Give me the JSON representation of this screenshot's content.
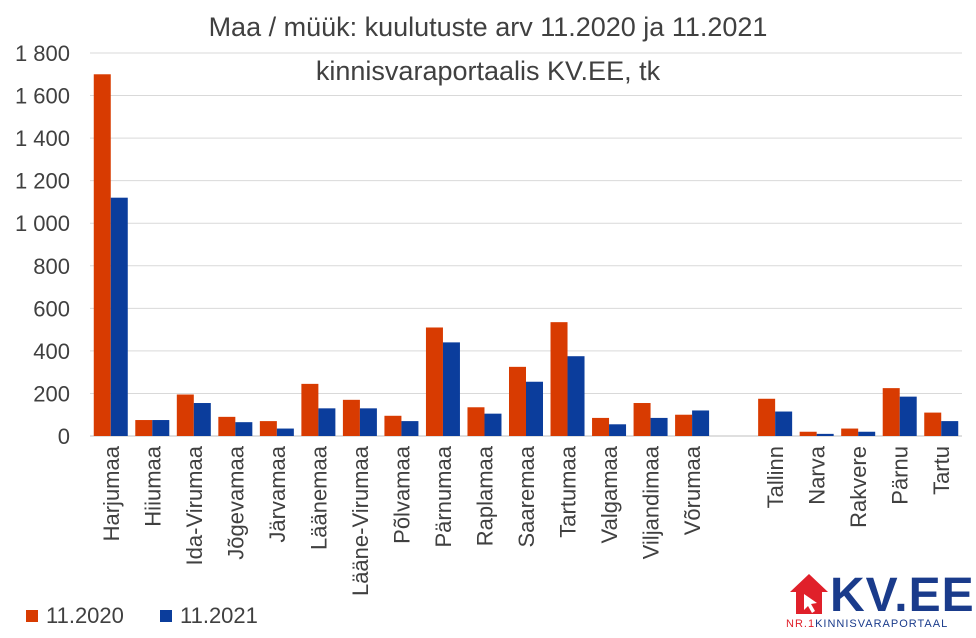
{
  "chart_data": {
    "type": "bar",
    "title_line1": "Maa / müük: kuulutuste arv 11.2020 ja 11.2021",
    "title_line2": "kinnisvaraportaalis KV.EE, tk",
    "categories": [
      "Harjumaa",
      "Hiiumaa",
      "Ida-Virumaa",
      "Jõgevamaa",
      "Järvamaa",
      "Läänemaa",
      "Lääne-Virumaa",
      "Põlvamaa",
      "Pärnumaa",
      "Raplamaa",
      "Saaremaa",
      "Tartumaa",
      "Valgamaa",
      "Viljandimaa",
      "Võrumaa",
      "",
      "Tallinn",
      "Narva",
      "Rakvere",
      "Pärnu",
      "Tartu"
    ],
    "series": [
      {
        "name": "11.2020",
        "color": "#d83b01",
        "values": [
          1700,
          75,
          195,
          90,
          70,
          245,
          170,
          95,
          510,
          135,
          325,
          535,
          85,
          155,
          100,
          null,
          175,
          20,
          35,
          225,
          110
        ]
      },
      {
        "name": "11.2021",
        "color": "#0b3d9c",
        "values": [
          1120,
          75,
          155,
          65,
          35,
          130,
          130,
          70,
          440,
          105,
          255,
          375,
          55,
          85,
          120,
          null,
          115,
          10,
          20,
          185,
          70
        ]
      }
    ],
    "ylim": [
      0,
      1800
    ],
    "yticks": [
      0,
      200,
      400,
      600,
      800,
      1000,
      1200,
      1400,
      1600,
      1800
    ],
    "ytick_labels": [
      "0",
      "200",
      "400",
      "600",
      "800",
      "1 000",
      "1 200",
      "1 400",
      "1 600",
      "1 800"
    ],
    "grid": true,
    "legend_position": "bottom-left"
  },
  "logo": {
    "text": "KV.EE",
    "sub_prefix": "NR.1",
    "sub_text": "KINNISVARAPORTAAL",
    "name": "kv-ee-house-logo"
  }
}
